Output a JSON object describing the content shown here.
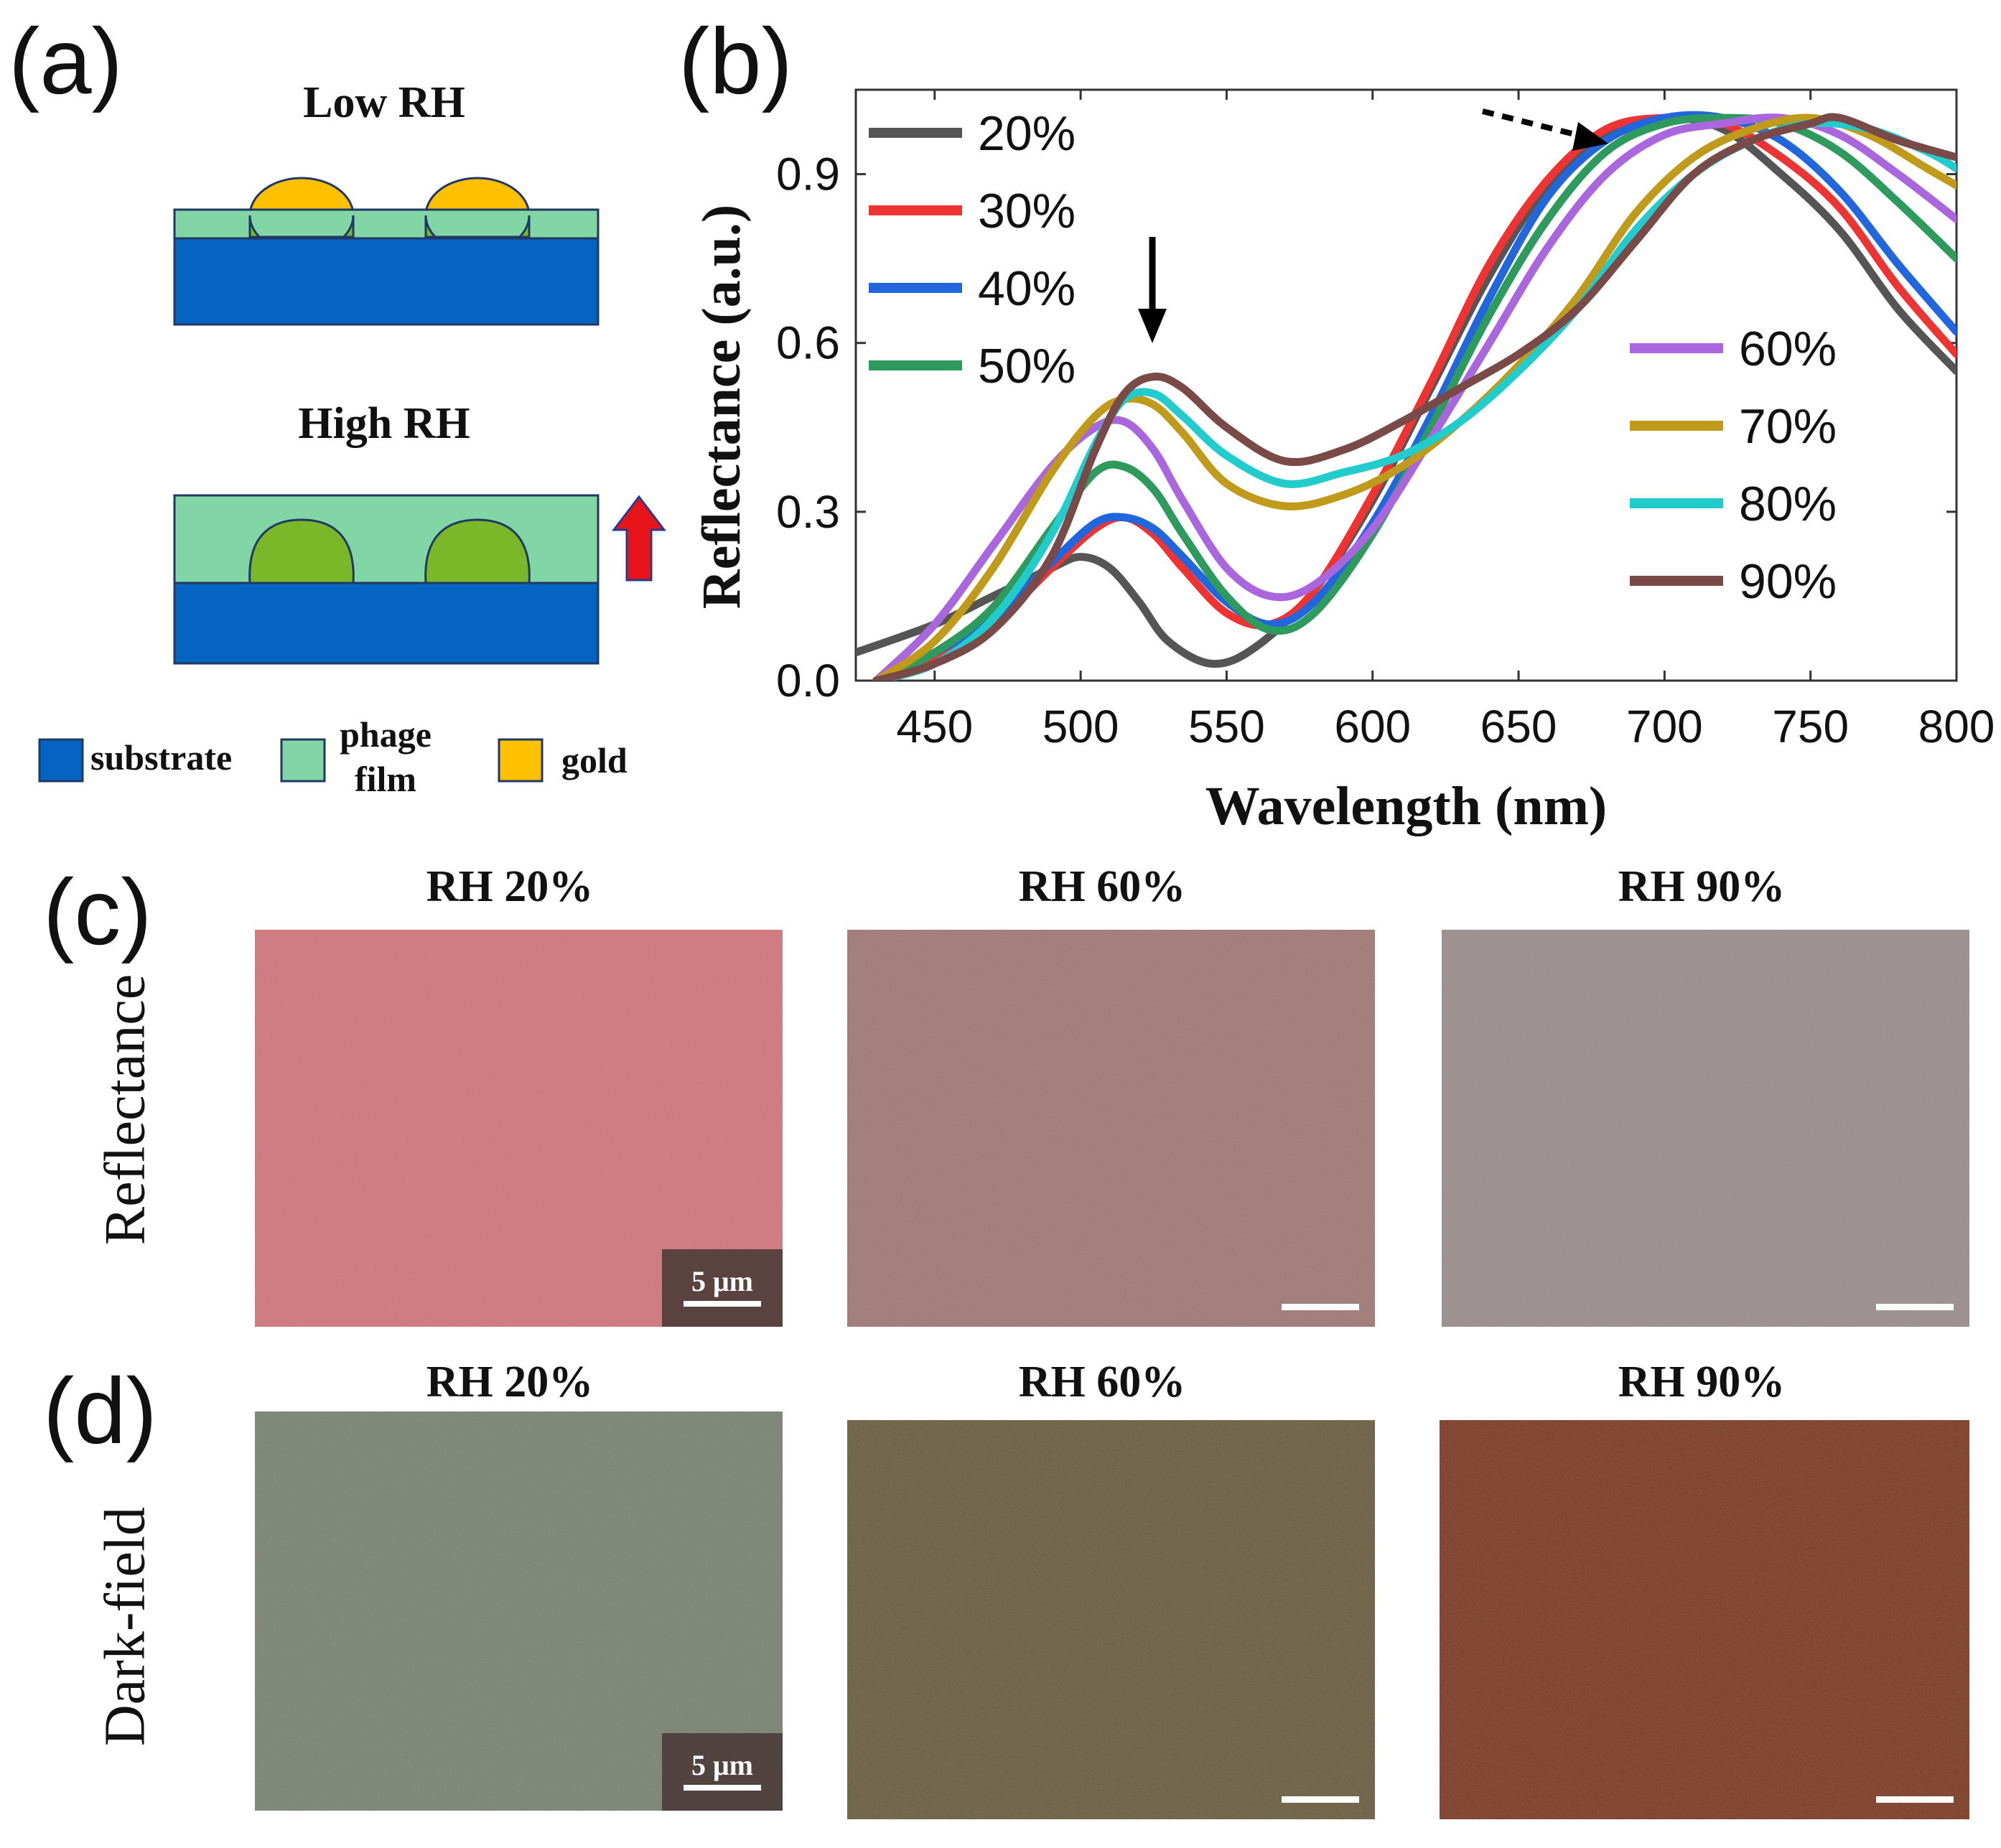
{
  "figure": {
    "panel_labels": {
      "a": "(a)",
      "b": "(b)",
      "c": "(c)",
      "d": "(d)"
    }
  },
  "panel_a": {
    "low_title": "Low RH",
    "high_title": "High RH",
    "legend": [
      {
        "label": "substrate",
        "color": "#0563c1"
      },
      {
        "label": "phage film",
        "color": "#82d6a6"
      },
      {
        "label": "gold",
        "color": "#ffc000"
      }
    ],
    "colors": {
      "substrate": "#0563c1",
      "film": "#82d6a6",
      "gold_top": "#ffc000",
      "gold_embedded": "#7ab82a",
      "arrow": "#e8141a"
    }
  },
  "chart_data": {
    "type": "line",
    "xlabel": "Wavelength (nm)",
    "ylabel": "Reflectance (a.u.)",
    "xlim": [
      423,
      800
    ],
    "ylim": [
      0,
      1.05
    ],
    "x_ticks": [
      450,
      500,
      550,
      600,
      650,
      700,
      750,
      800
    ],
    "y_ticks": [
      0.0,
      0.3,
      0.6,
      0.9
    ],
    "y_tick_labels": [
      "0.0",
      "0.3",
      "0.6",
      "0.9"
    ],
    "legend_left": [
      "20%",
      "30%",
      "40%",
      "50%"
    ],
    "legend_right": [
      "60%",
      "70%",
      "80%",
      "90%"
    ],
    "annotations": [
      "solid down arrow near 525 nm",
      "dotted arrow toward 700 nm peak"
    ],
    "series": [
      {
        "name": "20%",
        "color": "#555555",
        "x": [
          423,
          450,
          470,
          490,
          500,
          510,
          520,
          530,
          545,
          560,
          580,
          600,
          620,
          640,
          660,
          680,
          700,
          720,
          740,
          760,
          780,
          800
        ],
        "y": [
          0.05,
          0.1,
          0.15,
          0.2,
          0.22,
          0.2,
          0.14,
          0.07,
          0.03,
          0.06,
          0.16,
          0.32,
          0.52,
          0.72,
          0.88,
          0.97,
          1.0,
          0.98,
          0.9,
          0.8,
          0.66,
          0.55
        ]
      },
      {
        "name": "30%",
        "color": "#ee3333",
        "x": [
          430,
          450,
          470,
          490,
          505,
          515,
          525,
          535,
          550,
          565,
          580,
          600,
          620,
          640,
          660,
          680,
          700,
          720,
          740,
          760,
          780,
          800
        ],
        "y": [
          0.0,
          0.04,
          0.1,
          0.2,
          0.27,
          0.29,
          0.26,
          0.2,
          0.12,
          0.1,
          0.16,
          0.33,
          0.53,
          0.74,
          0.89,
          0.98,
          1.0,
          0.99,
          0.93,
          0.84,
          0.7,
          0.58
        ]
      },
      {
        "name": "40%",
        "color": "#2266dd",
        "x": [
          430,
          450,
          470,
          490,
          505,
          515,
          525,
          535,
          550,
          565,
          580,
          600,
          620,
          640,
          660,
          680,
          700,
          720,
          740,
          760,
          780,
          800
        ],
        "y": [
          0.0,
          0.05,
          0.11,
          0.21,
          0.28,
          0.29,
          0.27,
          0.22,
          0.14,
          0.1,
          0.14,
          0.28,
          0.47,
          0.68,
          0.86,
          0.96,
          1.0,
          1.0,
          0.96,
          0.87,
          0.74,
          0.62
        ]
      },
      {
        "name": "50%",
        "color": "#2e9a5e",
        "x": [
          430,
          450,
          470,
          490,
          505,
          515,
          525,
          535,
          550,
          565,
          580,
          600,
          620,
          640,
          660,
          680,
          700,
          720,
          740,
          760,
          780,
          800
        ],
        "y": [
          0.0,
          0.05,
          0.13,
          0.27,
          0.37,
          0.38,
          0.34,
          0.26,
          0.15,
          0.09,
          0.12,
          0.26,
          0.45,
          0.65,
          0.82,
          0.94,
          0.99,
          1.0,
          0.99,
          0.94,
          0.85,
          0.75
        ]
      },
      {
        "name": "60%",
        "color": "#aa66dd",
        "x": [
          430,
          450,
          470,
          490,
          505,
          515,
          525,
          535,
          550,
          565,
          580,
          600,
          620,
          640,
          660,
          680,
          700,
          720,
          740,
          760,
          780,
          800
        ],
        "y": [
          0.0,
          0.1,
          0.24,
          0.38,
          0.45,
          0.46,
          0.41,
          0.32,
          0.2,
          0.15,
          0.17,
          0.27,
          0.43,
          0.6,
          0.77,
          0.9,
          0.97,
          0.99,
          1.0,
          0.97,
          0.9,
          0.82
        ]
      },
      {
        "name": "70%",
        "color": "#c09a1a",
        "x": [
          430,
          450,
          470,
          490,
          505,
          515,
          525,
          535,
          550,
          570,
          590,
          610,
          630,
          650,
          670,
          690,
          710,
          730,
          750,
          770,
          790,
          800
        ],
        "y": [
          0.0,
          0.07,
          0.2,
          0.37,
          0.47,
          0.5,
          0.49,
          0.44,
          0.35,
          0.31,
          0.33,
          0.38,
          0.46,
          0.56,
          0.68,
          0.83,
          0.93,
          0.98,
          1.0,
          0.97,
          0.91,
          0.88
        ]
      },
      {
        "name": "80%",
        "color": "#22cccc",
        "x": [
          430,
          450,
          470,
          490,
          505,
          515,
          525,
          535,
          550,
          570,
          590,
          610,
          630,
          650,
          670,
          690,
          710,
          730,
          750,
          770,
          790,
          800
        ],
        "y": [
          0.0,
          0.03,
          0.11,
          0.26,
          0.42,
          0.5,
          0.51,
          0.47,
          0.4,
          0.35,
          0.37,
          0.4,
          0.46,
          0.55,
          0.66,
          0.8,
          0.9,
          0.96,
          0.99,
          0.98,
          0.94,
          0.91
        ]
      },
      {
        "name": "90%",
        "color": "#7a4a48",
        "x": [
          430,
          450,
          470,
          490,
          505,
          515,
          525,
          535,
          550,
          570,
          590,
          610,
          630,
          650,
          670,
          690,
          710,
          730,
          750,
          760,
          780,
          800
        ],
        "y": [
          0.0,
          0.03,
          0.09,
          0.22,
          0.41,
          0.51,
          0.54,
          0.52,
          0.45,
          0.39,
          0.41,
          0.46,
          0.52,
          0.58,
          0.66,
          0.78,
          0.9,
          0.96,
          0.99,
          1.0,
          0.96,
          0.93
        ]
      }
    ]
  },
  "panel_c": {
    "row_label": "Reflectance",
    "titles": [
      "RH 20%",
      "RH 60%",
      "RH 90%"
    ],
    "scale_label": "5 μm",
    "colors": [
      "#d2757c",
      "#a07876",
      "#9a8c8e"
    ]
  },
  "panel_d": {
    "row_label": "Dark-field",
    "titles": [
      "RH 20%",
      "RH 60%",
      "RH 90%"
    ],
    "scale_label": "5 μm",
    "colors": [
      "#7a8272",
      "#6b5e42",
      "#7c3c26"
    ]
  }
}
